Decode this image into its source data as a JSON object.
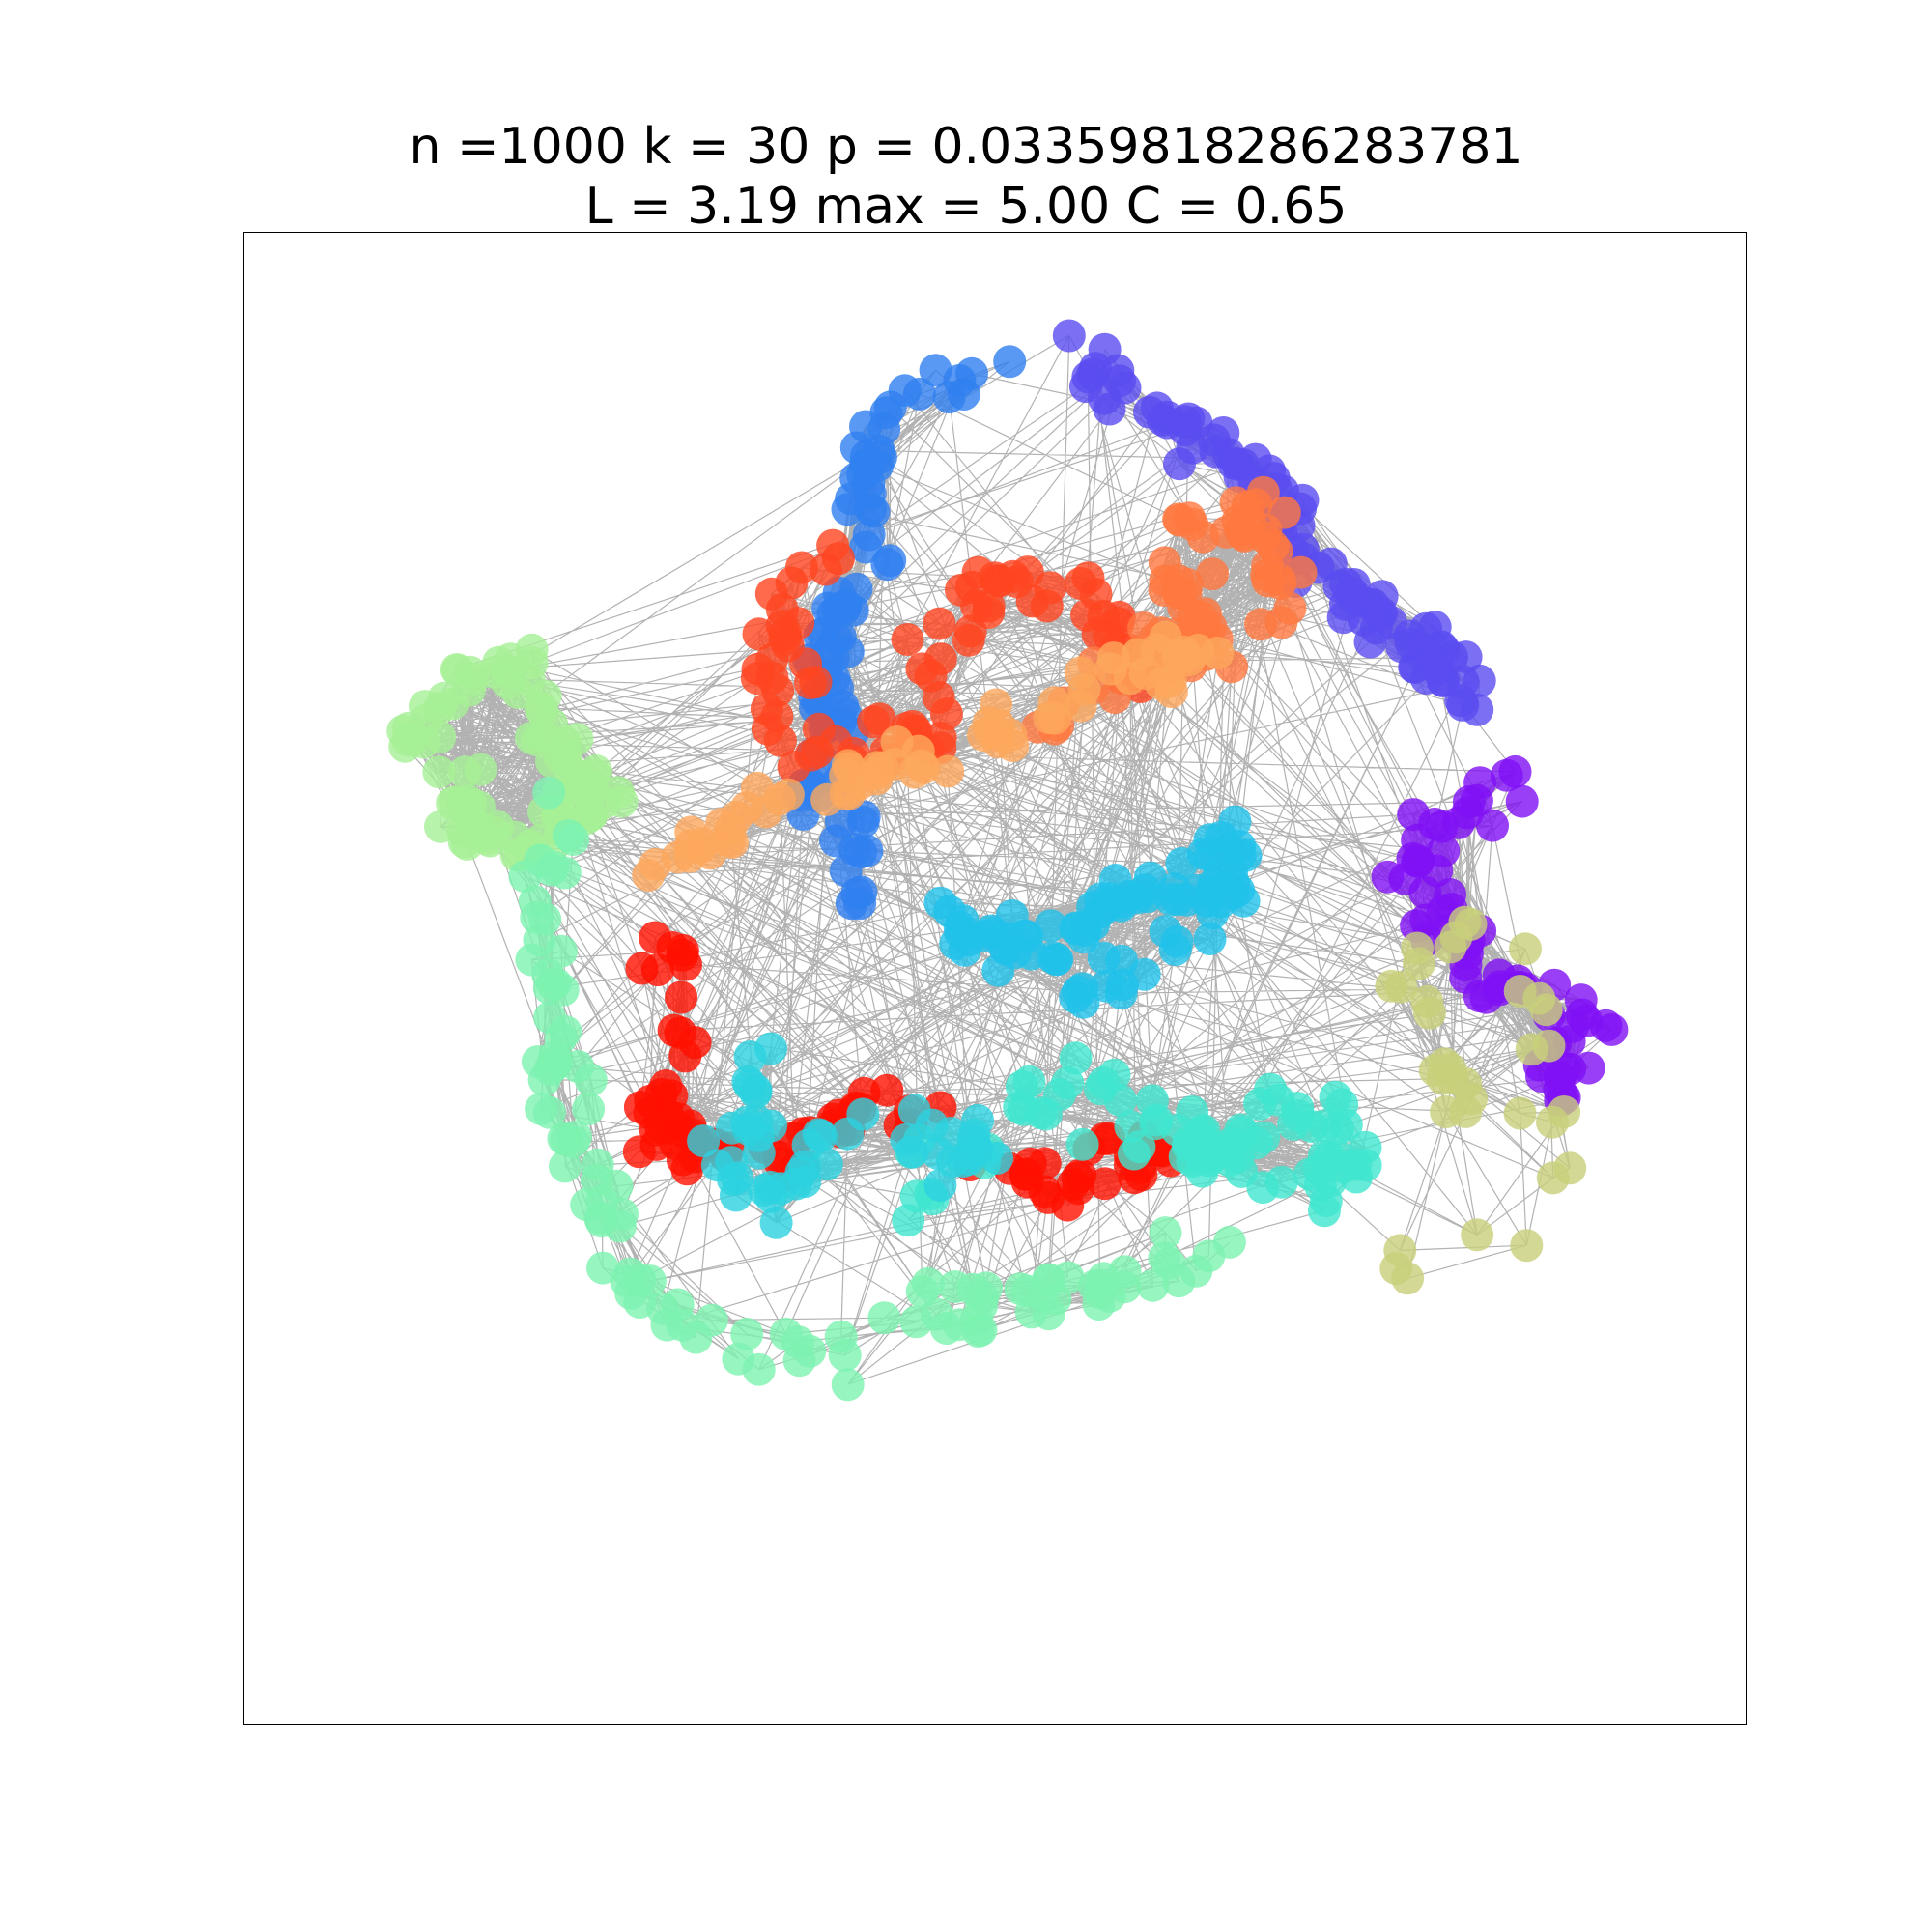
{
  "title": {
    "line1": "n =1000 k = 30 p = 0.03359818286283781",
    "line2": "L = 3.19 max = 5.00 C = 0.65"
  },
  "graph": {
    "type": "network",
    "node_count": 1000,
    "node_alpha": 0.8,
    "edge_color": "#000000",
    "edge_alpha": 0.3,
    "community_colors": [
      "#3080f0",
      "#5a4cf0",
      "#7f10f5",
      "#ff4520",
      "#ff7840",
      "#fca85c",
      "#a6f096",
      "#7df2b0",
      "#ff1000",
      "#21c2ea",
      "#40e6d0",
      "#2cd2e0",
      "#c8d07a"
    ]
  }
}
